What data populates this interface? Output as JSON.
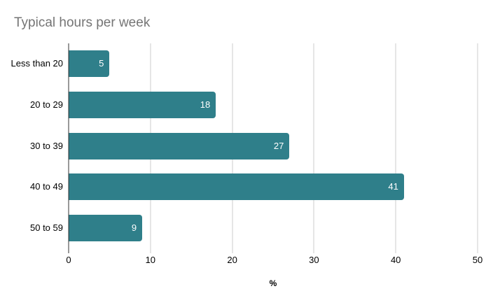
{
  "chart_data": {
    "type": "bar",
    "orientation": "horizontal",
    "title": "Typical hours per week",
    "categories": [
      "Less than 20",
      "20 to 29",
      "30 to 39",
      "40 to 49",
      "50 to 59"
    ],
    "values": [
      5,
      18,
      27,
      41,
      9
    ],
    "xlabel": "%",
    "xlim": [
      0,
      50
    ],
    "xticks": [
      0,
      10,
      20,
      30,
      40,
      50
    ],
    "grid": true,
    "legend": "none",
    "colors": {
      "bar": "#2f7f8a",
      "title": "#757575",
      "gridline": "#cccccc",
      "axis_line": "#333333",
      "value_label": "#ffffff",
      "tick_label": "#000000",
      "background": "#ffffff"
    }
  }
}
